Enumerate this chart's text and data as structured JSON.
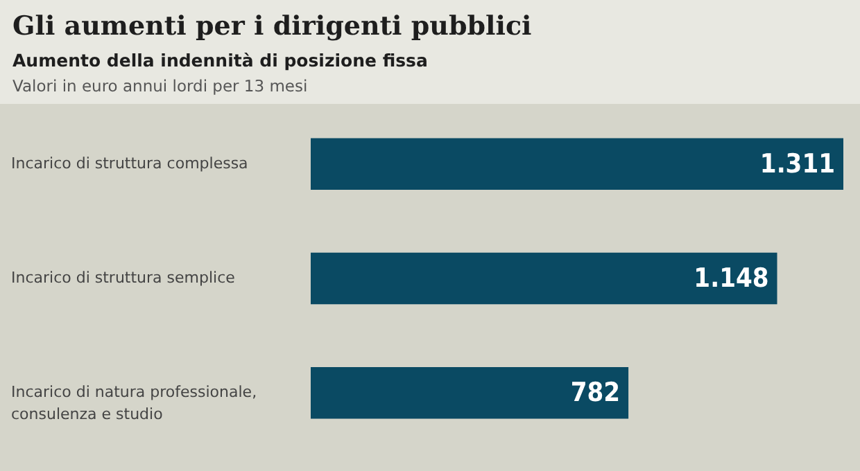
{
  "chart_data": {
    "type": "bar",
    "orientation": "horizontal",
    "title": "Gli aumenti per i dirigenti pubblici",
    "subtitle": "Aumento della indennità di posizione fissa",
    "annotations": [
      "Valori in euro annui lordi per 13 mesi"
    ],
    "categories": [
      "Incarico di struttura complessa",
      "Incarico di struttura semplice",
      "Incarico di natura professionale, consulenza e studio"
    ],
    "values": [
      1311,
      1148,
      782
    ],
    "color": "#0a4a63",
    "value_labels": [
      "1.311",
      "1.148",
      "782"
    ]
  }
}
